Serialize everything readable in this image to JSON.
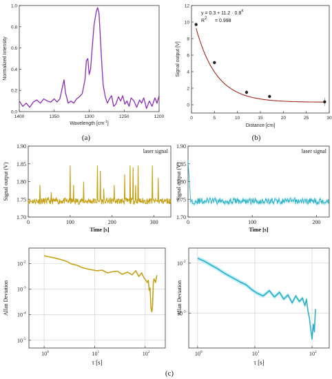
{
  "chart_data": [
    {
      "id": "a",
      "type": "line",
      "panel_label": "(a)",
      "xlabel": "Wavelength [cm",
      "xlabel_sup": "-1",
      "xlabel_end": "]",
      "ylabel": "Normalized Intensity",
      "xlim": [
        1400,
        1200
      ],
      "ylim": [
        0,
        1.0
      ],
      "x_ticks": [
        "1400",
        "1350",
        "1300",
        "1250",
        "1200"
      ],
      "y_ticks": [
        "0.0",
        "0.2",
        "0.4",
        "0.6",
        "0.8",
        "1.0"
      ],
      "color": "#8a2cb4",
      "series": [
        {
          "x": [
            1400,
            1395,
            1390,
            1385,
            1380,
            1375,
            1370,
            1365,
            1360,
            1355,
            1350,
            1346,
            1342,
            1338,
            1336,
            1334,
            1330,
            1326,
            1322,
            1318,
            1314,
            1310,
            1306,
            1304,
            1302,
            1300,
            1298,
            1296,
            1293,
            1290,
            1288,
            1286,
            1284,
            1282,
            1280,
            1277,
            1274,
            1271,
            1268,
            1265,
            1262,
            1258,
            1255,
            1252,
            1249,
            1246,
            1243,
            1240,
            1236,
            1232,
            1228,
            1225,
            1222,
            1218,
            1214,
            1210,
            1206,
            1203,
            1200
          ],
          "y": [
            0.1,
            0.05,
            0.08,
            0.04,
            0.09,
            0.11,
            0.08,
            0.12,
            0.1,
            0.09,
            0.12,
            0.09,
            0.12,
            0.24,
            0.3,
            0.18,
            0.08,
            0.1,
            0.08,
            0.12,
            0.14,
            0.17,
            0.3,
            0.48,
            0.5,
            0.35,
            0.4,
            0.58,
            0.82,
            0.94,
            0.98,
            0.93,
            0.7,
            0.45,
            0.25,
            0.14,
            0.08,
            0.12,
            0.15,
            0.05,
            0.07,
            0.14,
            0.1,
            0.15,
            0.07,
            0.1,
            0.05,
            0.13,
            0.1,
            0.04,
            0.11,
            0.08,
            0.13,
            0.03,
            0.1,
            0.05,
            0.13,
            0.08,
            0.15
          ]
        }
      ]
    },
    {
      "id": "b",
      "type": "scatter",
      "panel_label": "(b)",
      "xlabel": "Distance [cm]",
      "ylabel": "Signal output [V]",
      "xlim": [
        0,
        30
      ],
      "ylim": [
        -1,
        12
      ],
      "x_ticks": [
        "0",
        "5",
        "10",
        "15",
        "20",
        "25",
        "30"
      ],
      "y_ticks": [
        "0",
        "2",
        "4",
        "6",
        "8",
        "10",
        "12"
      ],
      "equation": "y = 0.3 + 11.2 · 0.8",
      "equation_sup": "x",
      "r2_label": "R",
      "r2_sup": "2",
      "r2_value": " = 0.998",
      "points": [
        {
          "x": 1,
          "y": 9.7,
          "err": 0.15
        },
        {
          "x": 5,
          "y": 5.1,
          "err": 0.2
        },
        {
          "x": 12,
          "y": 1.5,
          "err": 0.25
        },
        {
          "x": 17,
          "y": 1.0,
          "err": 0.2
        },
        {
          "x": 29,
          "y": 0.35,
          "err": 0.5
        }
      ],
      "fit": {
        "a": 0.3,
        "b": 11.2,
        "base": 0.8
      },
      "marker_color": "#222222",
      "fit_color": "#a0261e"
    },
    {
      "id": "c1",
      "type": "line",
      "annotation": "laser signal",
      "xlabel": "Time [s]",
      "ylabel": "Signal output (V)",
      "xlim": [
        0,
        340
      ],
      "ylim": [
        1.7,
        1.9
      ],
      "x_ticks": [
        "0",
        "100",
        "200",
        "300"
      ],
      "y_ticks": [
        "1.70",
        "1.75",
        "1.80",
        "1.85",
        "1.90"
      ],
      "color": "#c6a014",
      "baseline": 1.745,
      "spikes": [
        [
          28,
          1.79
        ],
        [
          55,
          1.77
        ],
        [
          100,
          1.845
        ],
        [
          108,
          1.79
        ],
        [
          132,
          1.8
        ],
        [
          165,
          1.845
        ],
        [
          172,
          1.83
        ],
        [
          180,
          1.78
        ],
        [
          205,
          1.79
        ],
        [
          230,
          1.82
        ],
        [
          243,
          1.845
        ],
        [
          250,
          1.84
        ],
        [
          256,
          1.79
        ],
        [
          262,
          1.845
        ],
        [
          296,
          1.845
        ],
        [
          310,
          1.81
        ]
      ]
    },
    {
      "id": "c2",
      "type": "line",
      "annotation": "laser signal",
      "xlabel": "Time [s]",
      "ylabel": "Signal output (V)",
      "xlim": [
        0,
        220
      ],
      "ylim": [
        1.7,
        1.9
      ],
      "x_ticks": [
        "0",
        "100",
        "200"
      ],
      "y_ticks": [
        "1.70",
        "1.75",
        "1.80",
        "1.85",
        "1.90"
      ],
      "color": "#2ab0c6",
      "band_color": "#9fe6f2",
      "baseline": 1.745
    },
    {
      "id": "c3",
      "type": "line",
      "log_x": true,
      "log_y": true,
      "xlabel": "τ [s]",
      "ylabel": "Allan Deviation",
      "xlim": [
        0.5,
        250
      ],
      "ylim": [
        5e-06,
        0.04
      ],
      "x_ticks": [
        "10",
        "10",
        "10"
      ],
      "x_tick_sups": [
        "0",
        "1",
        "2"
      ],
      "y_ticks": [
        "10",
        "10",
        "10",
        "10"
      ],
      "y_tick_sups": [
        "-2",
        "-3",
        "-4",
        "-5"
      ],
      "color": "#c6a014",
      "series": [
        {
          "x": [
            1,
            1.3,
            1.7,
            2.2,
            2.8,
            3.5,
            4.5,
            5.5,
            7,
            9,
            11,
            14,
            18,
            22,
            28,
            35,
            45,
            55,
            65,
            75,
            85,
            95,
            105,
            110,
            115,
            120,
            125,
            130,
            135,
            140,
            145,
            150,
            160,
            170
          ],
          "y": [
            0.02,
            0.018,
            0.016,
            0.014,
            0.012,
            0.0095,
            0.0085,
            0.007,
            0.0062,
            0.0056,
            0.0052,
            0.0055,
            0.0043,
            0.0047,
            0.005,
            0.0038,
            0.0046,
            0.0036,
            0.0052,
            0.0031,
            0.0043,
            0.0027,
            0.0021,
            0.0018,
            0.0022,
            0.0009,
            0.0011,
            0.00018,
            0.00013,
            0.00022,
            0.0019,
            0.0025,
            0.0018,
            0.0035
          ]
        }
      ]
    },
    {
      "id": "c4",
      "type": "line",
      "log_x": true,
      "log_y": true,
      "xlabel": "τ [s]",
      "ylabel": "Allan Deviation",
      "xlim": [
        0.7,
        200
      ],
      "ylim": [
        0.0002,
        0.02
      ],
      "x_ticks": [
        "10",
        "10",
        "10"
      ],
      "x_tick_sups": [
        "0",
        "1",
        "2"
      ],
      "y_ticks": [
        "10",
        "10"
      ],
      "y_tick_sups": [
        "-2",
        "-3"
      ],
      "color": "#2ab0c6",
      "band_color": "#9fe6f2",
      "series": [
        {
          "x": [
            1,
            1.3,
            1.7,
            2.2,
            2.8,
            3.5,
            4.5,
            5.5,
            7,
            9,
            11,
            14,
            18,
            22,
            27,
            32,
            38,
            45,
            52,
            60,
            68,
            75,
            80,
            85,
            90,
            95,
            100,
            105,
            110,
            115
          ],
          "y": [
            0.0125,
            0.011,
            0.0092,
            0.0078,
            0.0065,
            0.0056,
            0.0048,
            0.0042,
            0.0037,
            0.0029,
            0.0025,
            0.0022,
            0.0028,
            0.0021,
            0.0026,
            0.0019,
            0.0023,
            0.0016,
            0.0022,
            0.0017,
            0.002,
            0.0014,
            0.0019,
            0.0011,
            0.0008,
            0.00048,
            0.0003,
            0.0006,
            0.00042,
            0.0012
          ]
        }
      ]
    }
  ],
  "figure_label": "(c)"
}
